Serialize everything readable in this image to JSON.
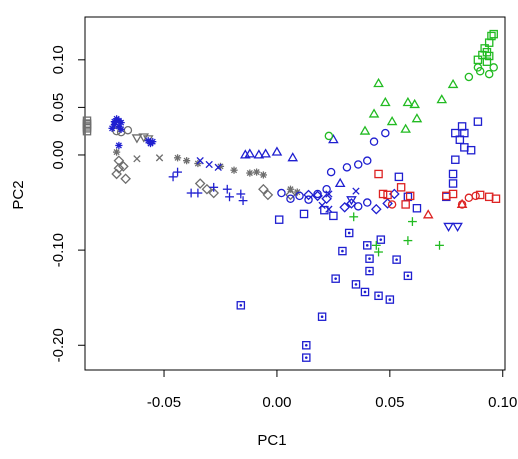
{
  "chart_data": {
    "type": "scatter",
    "title": "",
    "xlabel": "PC1",
    "ylabel": "PC2",
    "xlim": [
      -0.085,
      0.101
    ],
    "ylim": [
      -0.226,
      0.145
    ],
    "xticks": [
      -0.05,
      0.0,
      0.05,
      0.1
    ],
    "xtick_labels": [
      "-0.05",
      "0.00",
      "0.05",
      "0.10"
    ],
    "yticks": [
      0.1,
      0.05,
      0.0,
      -0.1,
      -0.2
    ],
    "ytick_labels": [
      "0.10",
      "0.05",
      "0.00",
      "-0.10",
      "-0.20"
    ],
    "grid": false,
    "legend": "none",
    "colors": {
      "blue": "#1f1fd0",
      "gray": "#6e6e6e",
      "green": "#22bb22",
      "red": "#dd2222"
    },
    "series": [
      {
        "color": "gray",
        "marker": "square",
        "points": [
          [
            -0.0905,
            0.032
          ],
          [
            -0.0898,
            0.028
          ],
          [
            -0.0902,
            0.036
          ],
          [
            -0.0895,
            0.03
          ],
          [
            -0.0889,
            0.033
          ],
          [
            -0.0908,
            0.025
          ]
        ]
      },
      {
        "color": "gray",
        "marker": "circle",
        "points": [
          [
            -0.069,
            0.024
          ],
          [
            -0.066,
            0.026
          ],
          [
            -0.071,
            0.025
          ]
        ]
      },
      {
        "color": "gray",
        "marker": "triangle-down",
        "points": [
          [
            -0.062,
            0.018
          ],
          [
            -0.059,
            0.019
          ],
          [
            -0.057,
            0.017
          ]
        ]
      },
      {
        "color": "gray",
        "marker": "diamond",
        "points": [
          [
            -0.07,
            -0.006
          ],
          [
            -0.068,
            -0.012
          ],
          [
            -0.071,
            -0.02
          ],
          [
            -0.067,
            -0.025
          ],
          [
            -0.07,
            -0.014
          ],
          [
            -0.034,
            -0.03
          ],
          [
            -0.031,
            -0.036
          ],
          [
            -0.028,
            -0.04
          ],
          [
            -0.006,
            -0.036
          ],
          [
            -0.004,
            -0.042
          ],
          [
            0.006,
            -0.042
          ]
        ]
      },
      {
        "color": "gray",
        "marker": "plus-x",
        "points": [
          [
            -0.071,
            0.003
          ],
          [
            -0.044,
            -0.003
          ],
          [
            -0.04,
            -0.006
          ],
          [
            -0.035,
            -0.009
          ],
          [
            -0.025,
            -0.012
          ],
          [
            -0.019,
            -0.016
          ],
          [
            -0.012,
            -0.019
          ],
          [
            -0.009,
            -0.018
          ],
          [
            -0.006,
            -0.021
          ],
          [
            0.006,
            -0.036
          ],
          [
            0.009,
            -0.039
          ]
        ]
      },
      {
        "color": "gray",
        "marker": "x",
        "points": [
          [
            -0.062,
            -0.004
          ],
          [
            -0.052,
            -0.003
          ]
        ]
      },
      {
        "color": "blue",
        "marker": "asterisk",
        "points": [
          [
            -0.072,
            0.035
          ],
          [
            -0.071,
            0.038
          ],
          [
            -0.07,
            0.036
          ],
          [
            -0.069,
            0.034
          ],
          [
            -0.072,
            0.032
          ],
          [
            -0.073,
            0.028
          ],
          [
            -0.07,
            0.03
          ],
          [
            -0.069,
            0.027
          ],
          [
            -0.055,
            0.014
          ],
          [
            -0.056,
            0.012
          ],
          [
            -0.057,
            0.015
          ],
          [
            -0.07,
            0.01
          ]
        ]
      },
      {
        "color": "blue",
        "marker": "x",
        "points": [
          [
            -0.034,
            -0.006
          ],
          [
            -0.03,
            -0.01
          ],
          [
            -0.026,
            -0.013
          ],
          [
            0.02,
            -0.053
          ],
          [
            0.023,
            -0.057
          ],
          [
            0.023,
            -0.041
          ],
          [
            0.035,
            -0.038
          ]
        ]
      },
      {
        "color": "blue",
        "marker": "plus",
        "points": [
          [
            -0.046,
            -0.023
          ],
          [
            -0.044,
            -0.018
          ],
          [
            -0.038,
            -0.04
          ],
          [
            -0.035,
            -0.04
          ],
          [
            -0.028,
            -0.034
          ],
          [
            -0.022,
            -0.036
          ],
          [
            -0.021,
            -0.044
          ],
          [
            -0.016,
            -0.041
          ],
          [
            -0.015,
            -0.048
          ]
        ]
      },
      {
        "color": "blue",
        "marker": "triangle",
        "points": [
          [
            -0.014,
            0.0
          ],
          [
            -0.012,
            0.001
          ],
          [
            -0.008,
            0.0
          ],
          [
            -0.005,
            0.001
          ],
          [
            0.0,
            0.003
          ],
          [
            0.007,
            -0.003
          ],
          [
            0.025,
            0.016
          ],
          [
            0.028,
            -0.03
          ]
        ]
      },
      {
        "color": "blue",
        "marker": "circle",
        "points": [
          [
            0.002,
            -0.04
          ],
          [
            0.006,
            -0.046
          ],
          [
            0.01,
            -0.043
          ],
          [
            0.014,
            -0.047
          ],
          [
            0.018,
            -0.041
          ],
          [
            0.022,
            -0.036
          ],
          [
            0.024,
            -0.018
          ],
          [
            0.031,
            -0.013
          ],
          [
            0.036,
            -0.01
          ],
          [
            0.04,
            -0.006
          ],
          [
            0.036,
            -0.054
          ],
          [
            0.04,
            -0.05
          ],
          [
            0.043,
            0.014
          ],
          [
            0.048,
            0.023
          ]
        ]
      },
      {
        "color": "blue",
        "marker": "diamond",
        "points": [
          [
            0.014,
            -0.042
          ],
          [
            0.018,
            -0.043
          ],
          [
            0.022,
            -0.046
          ],
          [
            0.03,
            -0.055
          ],
          [
            0.033,
            -0.051
          ],
          [
            0.044,
            -0.057
          ],
          [
            0.049,
            -0.051
          ],
          [
            0.052,
            -0.041
          ]
        ]
      },
      {
        "color": "blue",
        "marker": "triangle-down",
        "points": [
          [
            0.033,
            -0.047
          ],
          [
            0.076,
            -0.075
          ],
          [
            0.08,
            -0.075
          ]
        ]
      },
      {
        "color": "blue",
        "marker": "square",
        "points": [
          [
            0.001,
            -0.068
          ],
          [
            0.012,
            -0.062
          ],
          [
            0.021,
            -0.058
          ],
          [
            0.025,
            -0.064
          ],
          [
            0.054,
            -0.023
          ],
          [
            0.058,
            -0.044
          ],
          [
            0.062,
            -0.056
          ],
          [
            0.075,
            -0.044
          ],
          [
            0.078,
            -0.02
          ],
          [
            0.078,
            -0.03
          ],
          [
            0.079,
            -0.005
          ],
          [
            0.079,
            0.023
          ],
          [
            0.081,
            0.016
          ],
          [
            0.082,
            0.03
          ],
          [
            0.083,
            0.008
          ],
          [
            0.086,
            0.005
          ],
          [
            0.089,
            0.035
          ],
          [
            0.083,
            0.023
          ]
        ]
      },
      {
        "color": "blue",
        "marker": "square-dot",
        "points": [
          [
            -0.016,
            -0.158
          ],
          [
            0.013,
            -0.2
          ],
          [
            0.013,
            -0.213
          ],
          [
            0.02,
            -0.17
          ],
          [
            0.026,
            -0.13
          ],
          [
            0.029,
            -0.101
          ],
          [
            0.032,
            -0.082
          ],
          [
            0.035,
            -0.136
          ],
          [
            0.039,
            -0.144
          ],
          [
            0.04,
            -0.095
          ],
          [
            0.041,
            -0.109
          ],
          [
            0.041,
            -0.122
          ],
          [
            0.045,
            -0.148
          ],
          [
            0.046,
            -0.089
          ],
          [
            0.05,
            -0.152
          ],
          [
            0.053,
            -0.11
          ],
          [
            0.058,
            -0.127
          ]
        ]
      },
      {
        "color": "green",
        "marker": "square",
        "points": [
          [
            0.089,
            0.1
          ],
          [
            0.091,
            0.105
          ],
          [
            0.092,
            0.112
          ],
          [
            0.093,
            0.098
          ],
          [
            0.094,
            0.118
          ],
          [
            0.095,
            0.125
          ],
          [
            0.096,
            0.127
          ],
          [
            0.094,
            0.104
          ],
          [
            0.093,
            0.108
          ]
        ]
      },
      {
        "color": "green",
        "marker": "circle",
        "points": [
          [
            0.023,
            0.02
          ],
          [
            0.085,
            0.082
          ],
          [
            0.089,
            0.092
          ],
          [
            0.094,
            0.085
          ],
          [
            0.096,
            0.092
          ],
          [
            0.09,
            0.088
          ]
        ]
      },
      {
        "color": "green",
        "marker": "triangle",
        "points": [
          [
            0.045,
            0.075
          ],
          [
            0.043,
            0.043
          ],
          [
            0.048,
            0.055
          ],
          [
            0.039,
            0.025
          ],
          [
            0.051,
            0.035
          ],
          [
            0.058,
            0.055
          ],
          [
            0.061,
            0.053
          ],
          [
            0.057,
            0.027
          ],
          [
            0.062,
            0.038
          ],
          [
            0.073,
            0.058
          ],
          [
            0.078,
            0.074
          ]
        ]
      },
      {
        "color": "green",
        "marker": "plus",
        "points": [
          [
            0.034,
            -0.065
          ],
          [
            0.044,
            -0.095
          ],
          [
            0.045,
            -0.102
          ],
          [
            0.058,
            -0.09
          ],
          [
            0.06,
            -0.07
          ],
          [
            0.072,
            -0.095
          ]
        ]
      },
      {
        "color": "red",
        "marker": "square",
        "points": [
          [
            0.045,
            -0.02
          ],
          [
            0.047,
            -0.041
          ],
          [
            0.049,
            -0.042
          ],
          [
            0.055,
            -0.034
          ],
          [
            0.057,
            -0.052
          ],
          [
            0.059,
            -0.043
          ],
          [
            0.075,
            -0.043
          ],
          [
            0.078,
            -0.041
          ],
          [
            0.09,
            -0.042
          ],
          [
            0.094,
            -0.044
          ],
          [
            0.097,
            -0.046
          ]
        ]
      },
      {
        "color": "red",
        "marker": "circle",
        "points": [
          [
            0.051,
            -0.052
          ],
          [
            0.082,
            -0.052
          ],
          [
            0.085,
            -0.045
          ],
          [
            0.088,
            -0.043
          ]
        ]
      },
      {
        "color": "red",
        "marker": "triangle",
        "points": [
          [
            0.067,
            -0.063
          ],
          [
            0.082,
            -0.052
          ]
        ]
      }
    ]
  }
}
